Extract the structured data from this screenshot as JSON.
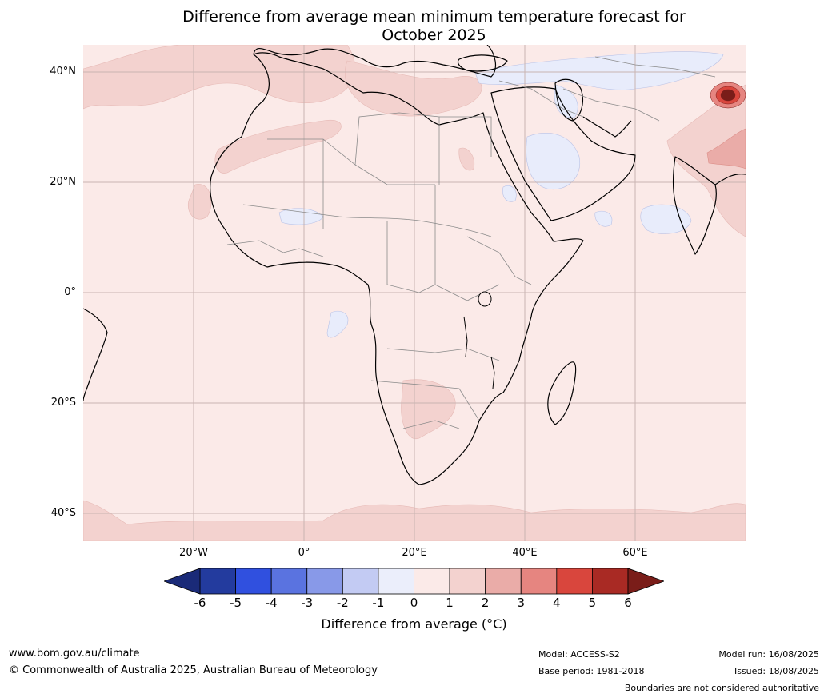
{
  "title": {
    "line1": "Difference from average mean minimum temperature forecast for",
    "line2": "October 2025"
  },
  "map": {
    "lat_labels": [
      "40°N",
      "20°N",
      "0°",
      "20°S",
      "40°S"
    ],
    "lon_labels": [
      "20°W",
      "0°",
      "20°E",
      "40°E",
      "60°E"
    ],
    "background_anomaly_color": "#fbeae8",
    "warm_anomaly_color": "#f3d2cf",
    "cool_anomaly_color": "#e8ecfb",
    "hotspot_color": "#a92a24"
  },
  "colorbar": {
    "ticks": [
      "-6",
      "-5",
      "-4",
      "-3",
      "-2",
      "-1",
      "0",
      "1",
      "2",
      "3",
      "4",
      "5",
      "6"
    ],
    "colors": [
      "#233b9e",
      "#3050df",
      "#5a73e0",
      "#8899e8",
      "#c3cbf3",
      "#ebeefb",
      "#fbeae8",
      "#f3d2cf",
      "#eaaca8",
      "#e68580",
      "#d9463d",
      "#a92a24"
    ],
    "extend_low_color": "#1a2a78",
    "extend_high_color": "#7a1d19",
    "label": "Difference from average (°C)"
  },
  "footer": {
    "website": "www.bom.gov.au/climate",
    "copyright": "© Commonwealth of Australia 2025, Australian Bureau of Meteorology",
    "model": "Model: ACCESS-S2",
    "base_period": "Base period: 1981-2018",
    "model_run": "Model run: 16/08/2025",
    "issued": "Issued: 18/08/2025",
    "disclaimer": "Boundaries are not considered authoritative"
  }
}
